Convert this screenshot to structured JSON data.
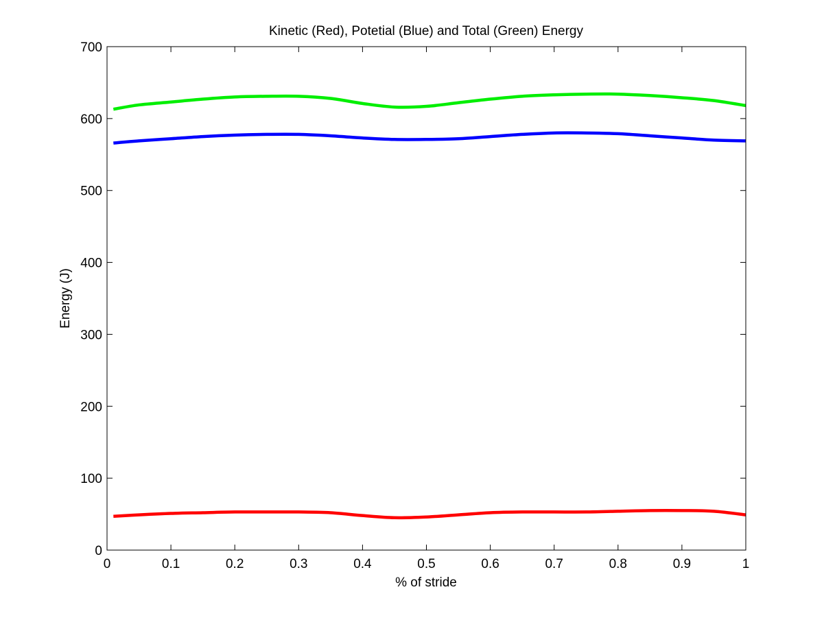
{
  "chart_data": {
    "type": "line",
    "title": "Kinetic (Red), Potetial (Blue) and Total (Green) Energy",
    "xlabel": "% of stride",
    "ylabel": "Energy (J)",
    "xlim": [
      0,
      1
    ],
    "ylim": [
      0,
      700
    ],
    "xticks": [
      0,
      0.1,
      0.2,
      0.3,
      0.4,
      0.5,
      0.6,
      0.7,
      0.8,
      0.9,
      1
    ],
    "xtick_labels": [
      "0",
      "0.1",
      "0.2",
      "0.3",
      "0.4",
      "0.5",
      "0.6",
      "0.7",
      "0.8",
      "0.9",
      "1"
    ],
    "yticks": [
      0,
      100,
      200,
      300,
      400,
      500,
      600,
      700
    ],
    "ytick_labels": [
      "0",
      "100",
      "200",
      "300",
      "400",
      "500",
      "600",
      "700"
    ],
    "grid": false,
    "legend": "none",
    "x": [
      0.01,
      0.05,
      0.1,
      0.15,
      0.2,
      0.25,
      0.3,
      0.35,
      0.4,
      0.45,
      0.5,
      0.55,
      0.6,
      0.65,
      0.7,
      0.75,
      0.8,
      0.85,
      0.9,
      0.95,
      1.0
    ],
    "series": [
      {
        "color": "#00ee00",
        "values": [
          613,
          619,
          623,
          627,
          630,
          631,
          631,
          628,
          621,
          616,
          617,
          622,
          627,
          631,
          633,
          634,
          634,
          632,
          629,
          625,
          618
        ]
      },
      {
        "color": "#0000ff",
        "values": [
          566,
          569,
          572,
          575,
          577,
          578,
          578,
          576,
          573,
          571,
          571,
          572,
          575,
          578,
          580,
          580,
          579,
          576,
          573,
          570,
          569
        ]
      },
      {
        "color": "#ff0000",
        "values": [
          47,
          49,
          51,
          52,
          53,
          53,
          53,
          52,
          48,
          45,
          46,
          49,
          52,
          53,
          53,
          53,
          54,
          55,
          55,
          54,
          49
        ]
      }
    ]
  }
}
